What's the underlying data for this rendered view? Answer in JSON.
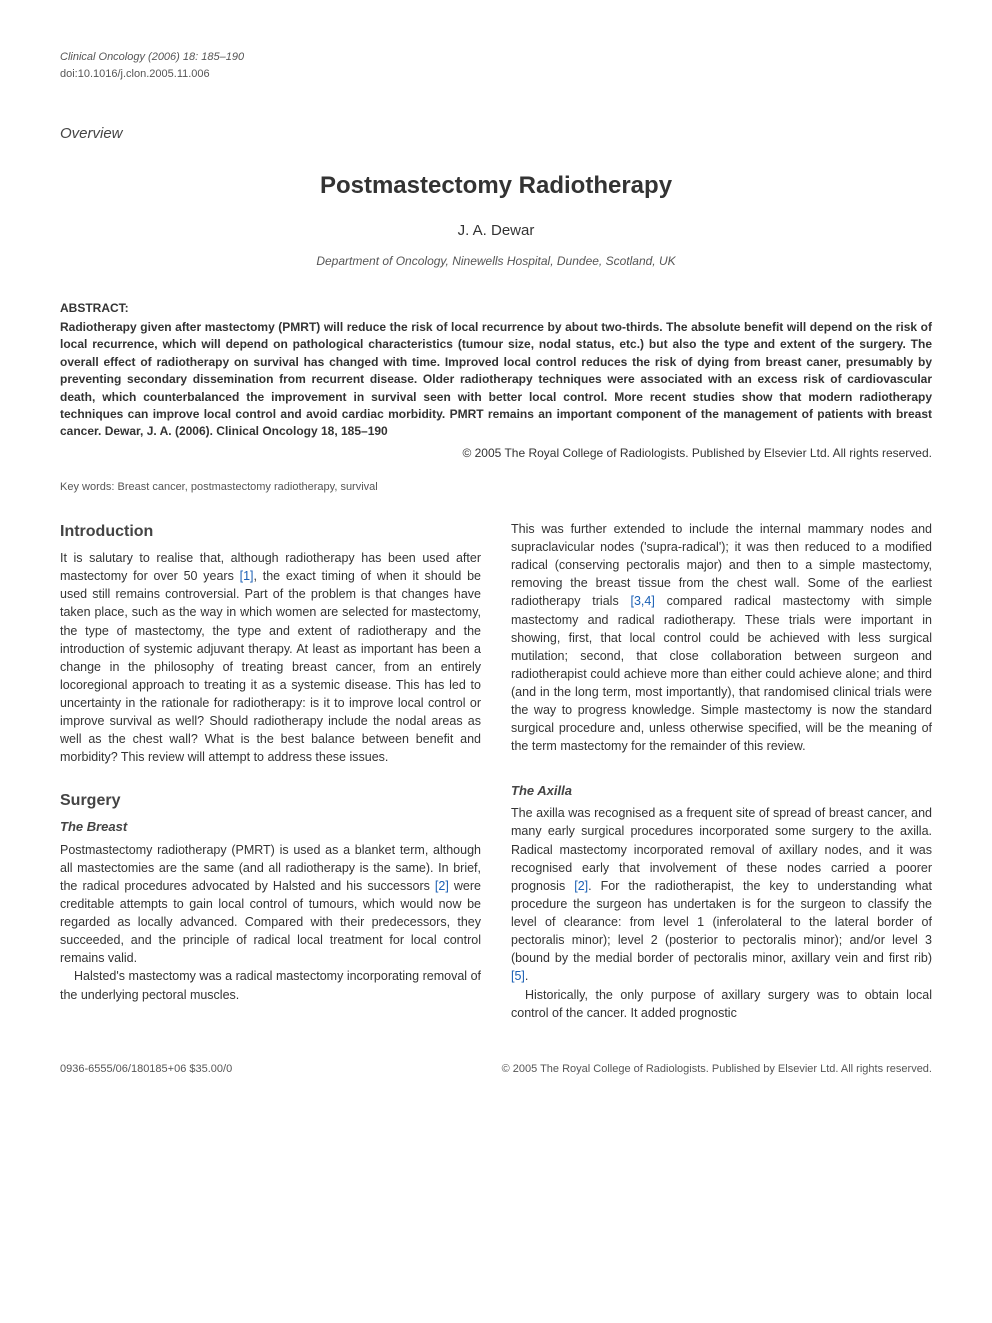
{
  "header": {
    "journal_line": "Clinical Oncology (2006) 18: 185–190",
    "doi": "doi:10.1016/j.clon.2005.11.006"
  },
  "overview_label": "Overview",
  "title": "Postmastectomy Radiotherapy",
  "author": "J. A. Dewar",
  "affiliation": "Department of Oncology, Ninewells Hospital, Dundee, Scotland, UK",
  "abstract": {
    "label": "ABSTRACT:",
    "text": "Radiotherapy given after mastectomy (PMRT) will reduce the risk of local recurrence by about two-thirds. The absolute benefit will depend on the risk of local recurrence, which will depend on pathological characteristics (tumour size, nodal status, etc.) but also the type and extent of the surgery. The overall effect of radiotherapy on survival has changed with time. Improved local control reduces the risk of dying from breast caner, presumably by preventing secondary dissemination from recurrent disease. Older radiotherapy techniques were associated with an excess risk of cardiovascular death, which counterbalanced the improvement in survival seen with better local control. More recent studies show that modern radiotherapy techniques can improve local control and avoid cardiac morbidity. PMRT remains an important component of the management of patients with breast cancer. Dewar, J. A. (2006). Clinical Oncology 18, 185–190"
  },
  "copyright": "© 2005 The Royal College of Radiologists. Published by Elsevier Ltd. All rights reserved.",
  "keywords": {
    "label": "Key words:",
    "text": "Breast cancer, postmastectomy radiotherapy, survival"
  },
  "sections": {
    "introduction": {
      "heading": "Introduction",
      "para": "It is salutary to realise that, although radiotherapy has been used after mastectomy for over 50 years [1], the exact timing of when it should be used still remains controversial. Part of the problem is that changes have taken place, such as the way in which women are selected for mastectomy, the type of mastectomy, the type and extent of radiotherapy and the introduction of systemic adjuvant therapy. At least as important has been a change in the philosophy of treating breast cancer, from an entirely locoregional approach to treating it as a systemic disease. This has led to uncertainty in the rationale for radiotherapy: is it to improve local control or improve survival as well? Should radiotherapy include the nodal areas as well as the chest wall? What is the best balance between benefit and morbidity? This review will attempt to address these issues."
    },
    "surgery": {
      "heading": "Surgery",
      "breast": {
        "heading": "The Breast",
        "para1": "Postmastectomy radiotherapy (PMRT) is used as a blanket term, although all mastectomies are the same (and all radiotherapy is the same). In brief, the radical procedures advocated by Halsted and his successors [2] were creditable attempts to gain local control of tumours, which would now be regarded as locally advanced. Compared with their predecessors, they succeeded, and the principle of radical local treatment for local control remains valid.",
        "para2": "Halsted's mastectomy was a radical mastectomy incorporating removal of the underlying pectoral muscles.",
        "para3": "This was further extended to include the internal mammary nodes and supraclavicular nodes ('supra-radical'); it was then reduced to a modified radical (conserving pectoralis major) and then to a simple mastectomy, removing the breast tissue from the chest wall. Some of the earliest radiotherapy trials [3,4] compared radical mastectomy with simple mastectomy and radical radiotherapy. These trials were important in showing, first, that local control could be achieved with less surgical mutilation; second, that close collaboration between surgeon and radiotherapist could achieve more than either could achieve alone; and third (and in the long term, most importantly), that randomised clinical trials were the way to progress knowledge. Simple mastectomy is now the standard surgical procedure and, unless otherwise specified, will be the meaning of the term mastectomy for the remainder of this review."
      },
      "axilla": {
        "heading": "The Axilla",
        "para1": "The axilla was recognised as a frequent site of spread of breast cancer, and many early surgical procedures incorporated some surgery to the axilla. Radical mastectomy incorporated removal of axillary nodes, and it was recognised early that involvement of these nodes carried a poorer prognosis [2]. For the radiotherapist, the key to understanding what procedure the surgeon has undertaken is for the surgeon to classify the level of clearance: from level 1 (inferolateral to the lateral border of pectoralis minor); level 2 (posterior to pectoralis minor); and/or level 3 (bound by the medial border of pectoralis minor, axillary vein and first rib) [5].",
        "para2": "Historically, the only purpose of axillary surgery was to obtain local control of the cancer. It added prognostic"
      }
    }
  },
  "footer": {
    "left": "0936-6555/06/180185+06 $35.00/0",
    "right": "© 2005 The Royal College of Radiologists. Published by Elsevier Ltd. All rights reserved."
  },
  "colors": {
    "text_body": "#333333",
    "text_muted": "#555555",
    "link": "#1a5fb4",
    "background": "#ffffff"
  },
  "typography": {
    "body_family": "Arial, Helvetica, sans-serif",
    "title_size_pt": 18,
    "section_heading_size_pt": 12,
    "body_size_pt": 9.5
  }
}
